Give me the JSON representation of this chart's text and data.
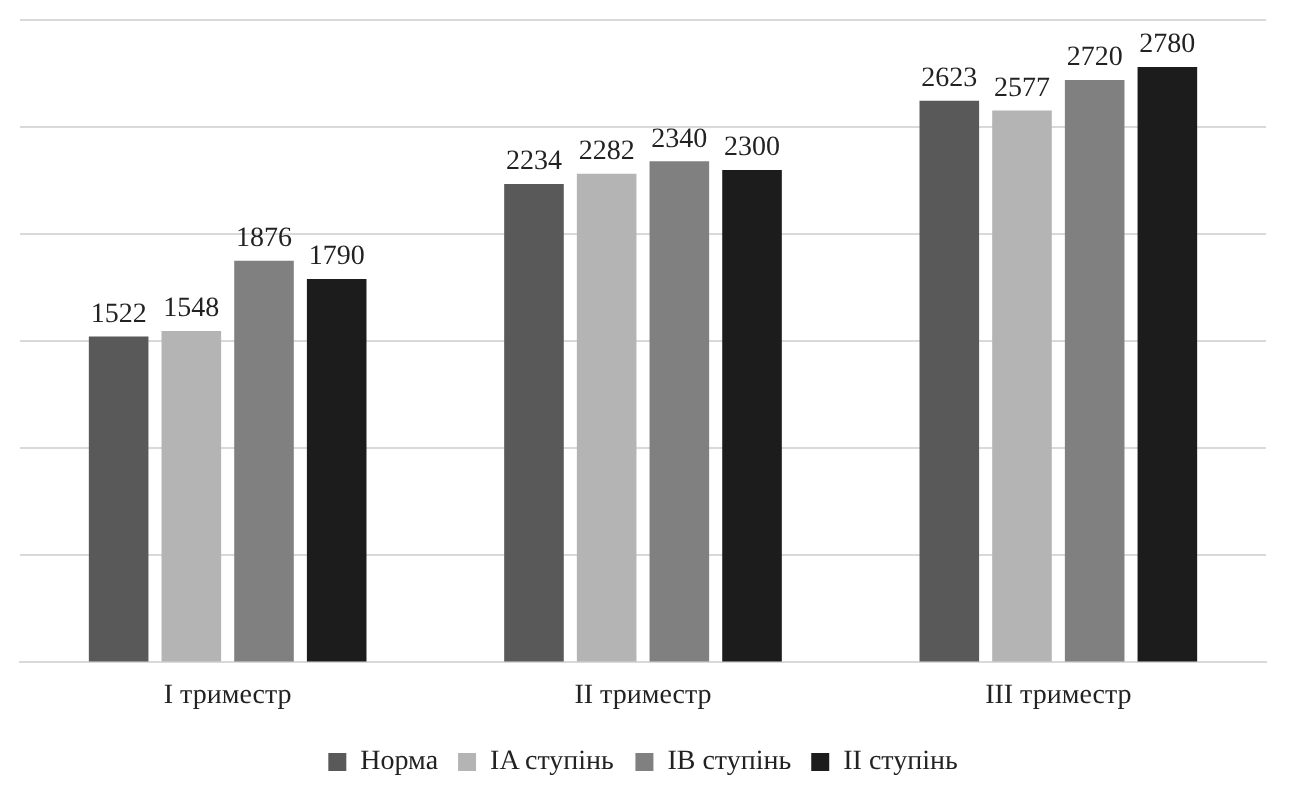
{
  "chart_data": {
    "type": "bar",
    "categories": [
      "I триместр",
      "II триместр",
      "III триместр"
    ],
    "series": [
      {
        "name": "Норма",
        "color": "#595959",
        "values": [
          1522,
          2234,
          2623
        ]
      },
      {
        "name": "IA ступінь",
        "color": "#b4b4b4",
        "values": [
          1548,
          2282,
          2577
        ]
      },
      {
        "name": "IB ступінь",
        "color": "#808080",
        "values": [
          1876,
          2340,
          2720
        ]
      },
      {
        "name": "II ступінь",
        "color": "#1c1c1c",
        "values": [
          1790,
          2300,
          2780
        ]
      }
    ],
    "ylim": [
      0,
      3000
    ],
    "yticks": [
      {
        "value": 0,
        "label": null
      },
      {
        "value": 500,
        "label": null
      },
      {
        "value": 1000,
        "label": null
      },
      {
        "value": 1500,
        "label": null
      },
      {
        "value": 2000,
        "label": null
      },
      {
        "value": 2500,
        "label": null
      },
      {
        "value": 3000,
        "label": null
      }
    ],
    "tick_labels": "x",
    "grid": "y",
    "legend": "bottom",
    "data_labels": true
  }
}
